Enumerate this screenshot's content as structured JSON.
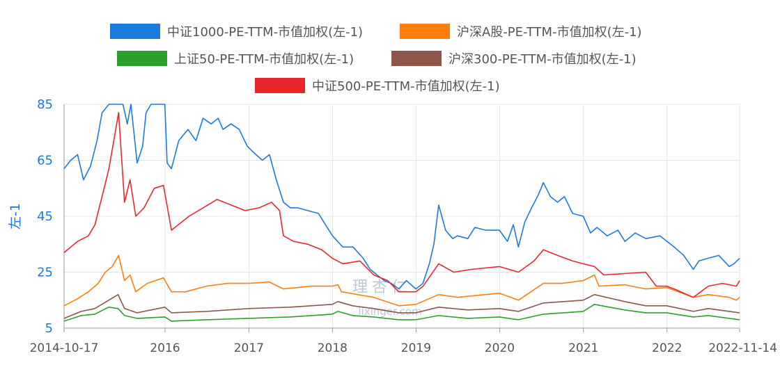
{
  "chart_data": {
    "type": "line",
    "ylabel": "左-1",
    "ylim": [
      5,
      85
    ],
    "yticks": [
      5,
      25,
      45,
      65,
      85
    ],
    "xlim": [
      "2014-10-17",
      "2022-11-14"
    ],
    "xticks": [
      "2014-10-17",
      "2016",
      "2017",
      "2018",
      "2019",
      "2020",
      "2021",
      "2022",
      "2022-11-14"
    ],
    "watermark": {
      "cn": "理杏仁",
      "en": "lixinger.com"
    },
    "legend_position": "top",
    "grid": true,
    "series": [
      {
        "name": "中证1000-PE-TTM-市值加权(左-1)",
        "color": "#1a7be0",
        "points": [
          [
            "2014-10-17",
            62
          ],
          [
            "2014-11-15",
            65
          ],
          [
            "2014-12-15",
            67
          ],
          [
            "2015-01-10",
            58
          ],
          [
            "2015-02-10",
            63
          ],
          [
            "2015-03-10",
            72
          ],
          [
            "2015-04-01",
            82
          ],
          [
            "2015-05-01",
            85
          ],
          [
            "2015-06-10",
            85
          ],
          [
            "2015-07-01",
            85
          ],
          [
            "2015-07-20",
            78
          ],
          [
            "2015-08-05",
            85
          ],
          [
            "2015-09-01",
            64
          ],
          [
            "2015-09-25",
            70
          ],
          [
            "2015-10-10",
            82
          ],
          [
            "2015-11-01",
            85
          ],
          [
            "2015-12-31",
            85
          ],
          [
            "2016-01-10",
            64
          ],
          [
            "2016-01-29",
            62
          ],
          [
            "2016-03-01",
            72
          ],
          [
            "2016-04-10",
            76
          ],
          [
            "2016-05-15",
            72
          ],
          [
            "2016-06-15",
            80
          ],
          [
            "2016-07-20",
            78
          ],
          [
            "2016-08-20",
            80
          ],
          [
            "2016-09-10",
            76
          ],
          [
            "2016-10-15",
            78
          ],
          [
            "2016-11-20",
            76
          ],
          [
            "2016-12-25",
            70
          ],
          [
            "2017-02-01",
            67
          ],
          [
            "2017-03-01",
            65
          ],
          [
            "2017-04-01",
            67
          ],
          [
            "2017-05-01",
            58
          ],
          [
            "2017-06-01",
            50
          ],
          [
            "2017-07-01",
            48
          ],
          [
            "2017-08-01",
            48
          ],
          [
            "2017-09-15",
            47
          ],
          [
            "2017-11-01",
            46
          ],
          [
            "2017-12-01",
            42
          ],
          [
            "2018-01-01",
            38
          ],
          [
            "2018-02-15",
            34
          ],
          [
            "2018-04-01",
            34
          ],
          [
            "2018-05-15",
            30
          ],
          [
            "2018-06-15",
            26
          ],
          [
            "2018-07-15",
            24
          ],
          [
            "2018-08-15",
            22
          ],
          [
            "2018-09-15",
            21
          ],
          [
            "2018-10-18",
            19
          ],
          [
            "2018-11-20",
            22
          ],
          [
            "2018-12-31",
            19
          ],
          [
            "2019-01-31",
            21
          ],
          [
            "2019-02-28",
            28
          ],
          [
            "2019-03-20",
            35
          ],
          [
            "2019-04-10",
            49
          ],
          [
            "2019-05-10",
            40
          ],
          [
            "2019-06-10",
            37
          ],
          [
            "2019-07-01",
            38
          ],
          [
            "2019-08-15",
            37
          ],
          [
            "2019-09-15",
            41
          ],
          [
            "2019-11-01",
            40
          ],
          [
            "2019-12-31",
            40
          ],
          [
            "2020-02-04",
            36
          ],
          [
            "2020-03-01",
            42
          ],
          [
            "2020-03-23",
            34
          ],
          [
            "2020-04-20",
            43
          ],
          [
            "2020-05-20",
            48
          ],
          [
            "2020-06-20",
            53
          ],
          [
            "2020-07-10",
            57
          ],
          [
            "2020-08-10",
            52
          ],
          [
            "2020-09-10",
            50
          ],
          [
            "2020-10-10",
            52
          ],
          [
            "2020-11-15",
            46
          ],
          [
            "2020-12-31",
            45
          ],
          [
            "2021-02-01",
            39
          ],
          [
            "2021-03-01",
            41
          ],
          [
            "2021-04-15",
            38
          ],
          [
            "2021-06-01",
            40
          ],
          [
            "2021-07-01",
            36
          ],
          [
            "2021-08-15",
            39
          ],
          [
            "2021-10-01",
            37
          ],
          [
            "2021-12-01",
            38
          ],
          [
            "2022-01-01",
            36
          ],
          [
            "2022-02-01",
            34
          ],
          [
            "2022-03-15",
            31
          ],
          [
            "2022-04-26",
            26
          ],
          [
            "2022-05-20",
            29
          ],
          [
            "2022-06-30",
            30
          ],
          [
            "2022-08-15",
            31
          ],
          [
            "2022-09-30",
            27
          ],
          [
            "2022-10-20",
            28
          ],
          [
            "2022-11-14",
            30
          ]
        ]
      },
      {
        "name": "沪深A股-PE-TTM-市值加权(左-1)",
        "color": "#ff7f0e",
        "points": [
          [
            "2014-10-17",
            13
          ],
          [
            "2014-12-15",
            15.5
          ],
          [
            "2015-01-31",
            18
          ],
          [
            "2015-03-15",
            21
          ],
          [
            "2015-04-15",
            25
          ],
          [
            "2015-05-15",
            27
          ],
          [
            "2015-06-12",
            31
          ],
          [
            "2015-07-08",
            22
          ],
          [
            "2015-08-01",
            24
          ],
          [
            "2015-08-26",
            18
          ],
          [
            "2015-10-15",
            21
          ],
          [
            "2015-12-25",
            23
          ],
          [
            "2016-01-29",
            18
          ],
          [
            "2016-03-31",
            18
          ],
          [
            "2016-06-30",
            20
          ],
          [
            "2016-09-30",
            21
          ],
          [
            "2016-12-31",
            21
          ],
          [
            "2017-03-31",
            21.5
          ],
          [
            "2017-06-01",
            19
          ],
          [
            "2017-09-30",
            20
          ],
          [
            "2017-12-31",
            20
          ],
          [
            "2018-01-25",
            20.5
          ],
          [
            "2018-02-09",
            18
          ],
          [
            "2018-06-30",
            16
          ],
          [
            "2018-10-18",
            13
          ],
          [
            "2018-12-31",
            13.5
          ],
          [
            "2019-04-10",
            17
          ],
          [
            "2019-06-30",
            16
          ],
          [
            "2019-12-31",
            17.5
          ],
          [
            "2020-03-23",
            15
          ],
          [
            "2020-07-10",
            21
          ],
          [
            "2020-09-30",
            21
          ],
          [
            "2020-12-31",
            22
          ],
          [
            "2021-02-18",
            24
          ],
          [
            "2021-03-10",
            20
          ],
          [
            "2021-06-30",
            20.5
          ],
          [
            "2021-09-30",
            19
          ],
          [
            "2021-12-31",
            19.5
          ],
          [
            "2022-04-26",
            16
          ],
          [
            "2022-06-30",
            17
          ],
          [
            "2022-09-30",
            16
          ],
          [
            "2022-10-31",
            15
          ],
          [
            "2022-11-14",
            16
          ]
        ]
      },
      {
        "name": "上证50-PE-TTM-市值加权(左-1)",
        "color": "#2ca02c",
        "points": [
          [
            "2014-10-17",
            7.5
          ],
          [
            "2014-12-31",
            9.5
          ],
          [
            "2015-02-28",
            10
          ],
          [
            "2015-04-30",
            12.5
          ],
          [
            "2015-06-10",
            12
          ],
          [
            "2015-07-08",
            9.5
          ],
          [
            "2015-09-01",
            8.5
          ],
          [
            "2015-12-31",
            9
          ],
          [
            "2016-01-29",
            7.5
          ],
          [
            "2016-06-30",
            8
          ],
          [
            "2016-12-31",
            8.5
          ],
          [
            "2017-06-30",
            9
          ],
          [
            "2017-12-31",
            10
          ],
          [
            "2018-01-25",
            11
          ],
          [
            "2018-03-30",
            9.5
          ],
          [
            "2018-06-30",
            9
          ],
          [
            "2018-10-18",
            8
          ],
          [
            "2018-12-31",
            8
          ],
          [
            "2019-04-10",
            9.5
          ],
          [
            "2019-08-15",
            8.5
          ],
          [
            "2019-12-31",
            9
          ],
          [
            "2020-03-23",
            8
          ],
          [
            "2020-07-10",
            10
          ],
          [
            "2020-12-31",
            11
          ],
          [
            "2021-02-18",
            13.5
          ],
          [
            "2021-06-30",
            11.5
          ],
          [
            "2021-09-30",
            10.5
          ],
          [
            "2021-12-31",
            10.5
          ],
          [
            "2022-04-26",
            9
          ],
          [
            "2022-06-30",
            9.5
          ],
          [
            "2022-09-30",
            8.5
          ],
          [
            "2022-11-14",
            8
          ]
        ]
      },
      {
        "name": "沪深300-PE-TTM-市值加权(左-1)",
        "color": "#8c564b",
        "points": [
          [
            "2014-10-17",
            8.5
          ],
          [
            "2014-12-31",
            11
          ],
          [
            "2015-02-28",
            12
          ],
          [
            "2015-04-30",
            15
          ],
          [
            "2015-06-10",
            17
          ],
          [
            "2015-07-08",
            12
          ],
          [
            "2015-09-01",
            10.5
          ],
          [
            "2015-12-31",
            12.5
          ],
          [
            "2016-01-29",
            10.5
          ],
          [
            "2016-06-30",
            11
          ],
          [
            "2016-12-31",
            12
          ],
          [
            "2017-06-30",
            12.5
          ],
          [
            "2017-12-31",
            13.5
          ],
          [
            "2018-01-25",
            14.5
          ],
          [
            "2018-03-30",
            13
          ],
          [
            "2018-06-30",
            12
          ],
          [
            "2018-10-18",
            10.5
          ],
          [
            "2018-12-31",
            10.5
          ],
          [
            "2019-04-10",
            12.5
          ],
          [
            "2019-08-15",
            11.5
          ],
          [
            "2019-12-31",
            12
          ],
          [
            "2020-03-23",
            11
          ],
          [
            "2020-07-10",
            14
          ],
          [
            "2020-12-31",
            15
          ],
          [
            "2021-02-18",
            17
          ],
          [
            "2021-06-30",
            14.5
          ],
          [
            "2021-09-30",
            13
          ],
          [
            "2021-12-31",
            13
          ],
          [
            "2022-04-26",
            11
          ],
          [
            "2022-06-30",
            12
          ],
          [
            "2022-09-30",
            11
          ],
          [
            "2022-11-14",
            10.5
          ]
        ]
      },
      {
        "name": "中证500-PE-TTM-市值加权(左-1)",
        "color": "#e8272d",
        "points": [
          [
            "2014-10-17",
            32
          ],
          [
            "2014-12-15",
            36
          ],
          [
            "2015-01-31",
            38
          ],
          [
            "2015-03-01",
            42
          ],
          [
            "2015-04-10",
            55
          ],
          [
            "2015-05-01",
            62
          ],
          [
            "2015-06-12",
            82
          ],
          [
            "2015-07-08",
            50
          ],
          [
            "2015-08-01",
            58
          ],
          [
            "2015-08-26",
            45
          ],
          [
            "2015-10-01",
            48
          ],
          [
            "2015-11-15",
            55
          ],
          [
            "2015-12-25",
            56
          ],
          [
            "2016-01-29",
            40
          ],
          [
            "2016-04-15",
            45
          ],
          [
            "2016-06-15",
            48
          ],
          [
            "2016-08-15",
            51
          ],
          [
            "2016-10-15",
            49
          ],
          [
            "2016-12-15",
            47
          ],
          [
            "2017-02-15",
            48
          ],
          [
            "2017-04-10",
            50
          ],
          [
            "2017-05-15",
            47
          ],
          [
            "2017-06-01",
            38
          ],
          [
            "2017-07-15",
            36
          ],
          [
            "2017-09-15",
            35
          ],
          [
            "2017-11-15",
            33
          ],
          [
            "2017-12-31",
            30
          ],
          [
            "2018-02-15",
            28
          ],
          [
            "2018-05-01",
            29
          ],
          [
            "2018-06-30",
            24
          ],
          [
            "2018-08-30",
            22
          ],
          [
            "2018-10-18",
            18
          ],
          [
            "2018-12-31",
            18
          ],
          [
            "2019-02-01",
            20
          ],
          [
            "2019-04-10",
            28
          ],
          [
            "2019-06-15",
            25
          ],
          [
            "2019-08-30",
            26
          ],
          [
            "2019-12-31",
            27
          ],
          [
            "2020-03-23",
            25
          ],
          [
            "2020-05-30",
            29
          ],
          [
            "2020-07-10",
            33
          ],
          [
            "2020-09-10",
            31
          ],
          [
            "2020-11-15",
            29
          ],
          [
            "2020-12-31",
            28
          ],
          [
            "2021-02-18",
            27
          ],
          [
            "2021-03-31",
            24
          ],
          [
            "2021-06-30",
            24.5
          ],
          [
            "2021-09-30",
            25
          ],
          [
            "2021-11-15",
            20
          ],
          [
            "2021-12-31",
            20
          ],
          [
            "2022-02-01",
            19
          ],
          [
            "2022-04-26",
            16
          ],
          [
            "2022-06-30",
            20
          ],
          [
            "2022-08-31",
            21
          ],
          [
            "2022-10-31",
            20
          ],
          [
            "2022-11-14",
            22
          ]
        ]
      }
    ]
  }
}
